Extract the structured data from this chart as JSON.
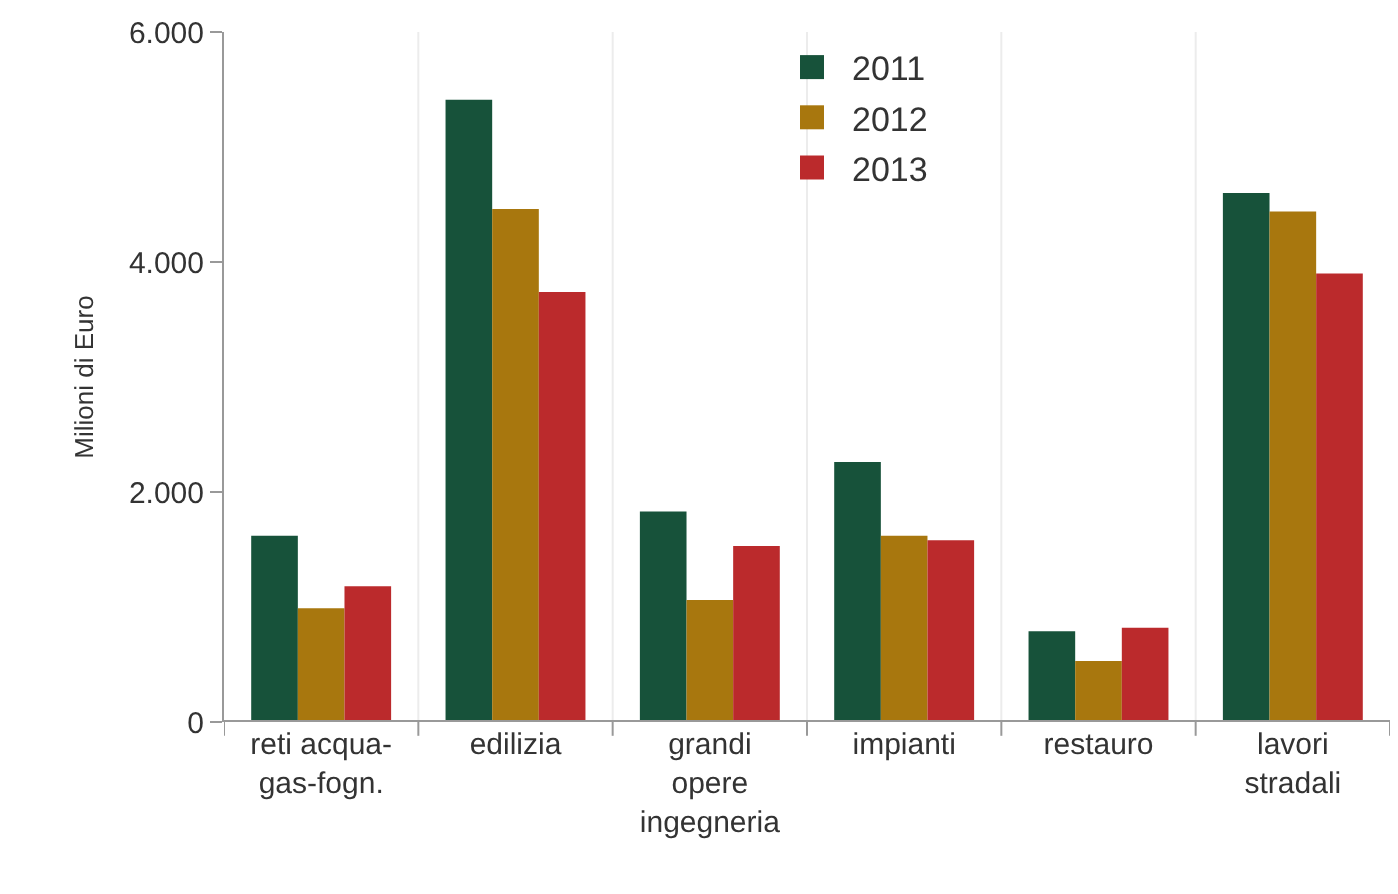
{
  "chart_data": {
    "type": "bar",
    "ylabel": "Milioni di Euro",
    "categories": [
      "reti acqua-\ngas-fogn.",
      "edilizia",
      "grandi\nopere\ningegneria",
      "impianti",
      "restauro",
      "lavori\nstradali"
    ],
    "series": [
      {
        "name": "2011",
        "color": "#17523a",
        "values": [
          1620,
          5410,
          1830,
          2260,
          790,
          4600
        ]
      },
      {
        "name": "2012",
        "color": "#a8770e",
        "values": [
          990,
          4460,
          1060,
          1620,
          530,
          4440
        ]
      },
      {
        "name": "2013",
        "color": "#bb2a2c",
        "values": [
          1180,
          3740,
          1530,
          1580,
          820,
          3900
        ]
      }
    ],
    "ylim": [
      0,
      6000
    ],
    "yticks": [
      {
        "value": 0,
        "label": "0"
      },
      {
        "value": 2000,
        "label": "2.000"
      },
      {
        "value": 4000,
        "label": "4.000"
      },
      {
        "value": 6000,
        "label": "6.000"
      }
    ],
    "grid": "x",
    "legend": "top"
  }
}
